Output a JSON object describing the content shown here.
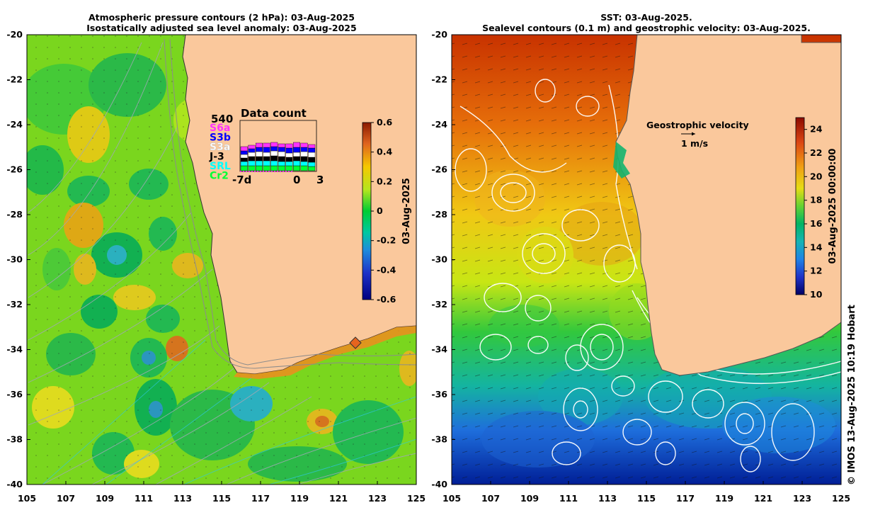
{
  "left_panel": {
    "title_line1": "Atmospheric pressure contours (2 hPa): 03-Aug-2025",
    "title_line2": "Isostatically adjusted sea level anomaly: 03-Aug-2025",
    "lat_labels": [
      "-20",
      "-22",
      "-24",
      "-26",
      "-28",
      "-30",
      "-32",
      "-34",
      "-36",
      "-38",
      "-40"
    ],
    "lon_labels": [
      "105",
      "107",
      "109",
      "111",
      "113",
      "115",
      "117",
      "119",
      "121",
      "123",
      "125"
    ],
    "colorbar": {
      "ticks": [
        "0.6",
        "0.4",
        "0.2",
        "0",
        "-0.2",
        "-0.4",
        "-0.6"
      ],
      "range": [
        -0.6,
        0.6
      ],
      "label": "03-Aug-2025"
    },
    "data_count": {
      "title": "Data count",
      "max": "540",
      "missions": [
        {
          "name": "S6a",
          "color": "#ff33ff"
        },
        {
          "name": "S3b",
          "color": "#0000ff"
        },
        {
          "name": "S3a",
          "color": "#ffffff"
        },
        {
          "name": "J-3",
          "color": "#000000"
        },
        {
          "name": "SRL",
          "color": "#00ffff"
        },
        {
          "name": "Cr2",
          "color": "#00ff33"
        }
      ],
      "axis_labels": [
        "-7d",
        "0",
        "3"
      ]
    }
  },
  "right_panel": {
    "title_line1": "SST: 03-Aug-2025.",
    "title_line2": "Sealevel contours (0.1 m) and geostrophic velocity: 03-Aug-2025.",
    "lat_labels": [
      "-20",
      "-22",
      "-24",
      "-26",
      "-28",
      "-30",
      "-32",
      "-34",
      "-36",
      "-38",
      "-40"
    ],
    "lon_labels": [
      "105",
      "107",
      "109",
      "111",
      "113",
      "115",
      "117",
      "119",
      "121",
      "123",
      "125"
    ],
    "colorbar": {
      "ticks": [
        "24",
        "22",
        "20",
        "18",
        "16",
        "14",
        "12",
        "10"
      ],
      "range": [
        10,
        25
      ],
      "label": "03-Aug-2025 00:00:00"
    },
    "velocity_legend": {
      "title": "Geostrophic velocity",
      "scale": "1 m/s"
    }
  },
  "credit": "© IMOS 13-Aug-2025 10:19 Hobart",
  "colors": {
    "land": "#fac89c",
    "sla_zero": "#00cc33",
    "sst_warm": "#c83200",
    "sst_cold": "#001e96"
  }
}
